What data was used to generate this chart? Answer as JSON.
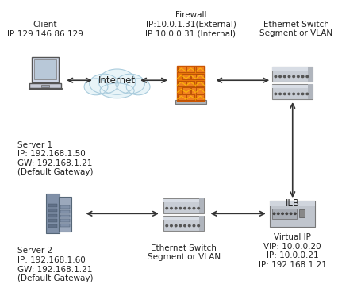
{
  "background_color": "#ffffff",
  "client_label": "Client\nIP:129.146.86.129",
  "firewall_label": "Firewall\nIP:10.0.1.31(External)\nIP:10.0.0.31 (Internal)",
  "eth_switch_top_label": "Ethernet Switch\nSegment or VLAN",
  "server1_label": "Server 1\nIP: 192.168.1.50\nGW: 192.168.1.21\n(Default Gateway)",
  "server2_label": "Server 2\nIP: 192.168.1.60\nGW: 192.168.1.21\n(Default Gateway)",
  "eth_switch_bot_label": "Ethernet Switch\nSegment or VLAN",
  "ilb_label": "ILB",
  "ilb_detail_label": "Virtual IP\nVIP: 10.0.0.20\nIP: 10.0.0.21\nIP: 192.168.1.21",
  "internet_label": "Internet",
  "font_size_small": 7.5,
  "font_size_medium": 8.5,
  "arrow_color": "#333333",
  "laptop_colors": {
    "frame": "#d0d8e8",
    "screen": "#b8c8d8",
    "base": "#c8ccd8",
    "pad": "#a0a8b8",
    "foot": "#aab0c0"
  },
  "cloud_colors": {
    "fill": "#e8f4f8",
    "edge": "#aaccdd"
  },
  "firewall_colors": {
    "plat": "#b0b4b8",
    "wall_bg": "#e8760a",
    "brick": "#f08020",
    "brick_edge": "#aa4400",
    "fire": "#ffcc00"
  },
  "switch_colors": {
    "main": "#c8cdd5",
    "top": "#d8dde5",
    "side": "#b0b5bd",
    "port": "#555555"
  },
  "server_colors": [
    "#8090a8",
    "#9ba8bc"
  ],
  "server_bay_colors": [
    "#607088",
    "#8090a8"
  ],
  "ilb_colors": {
    "main": "#c0c5cd",
    "panel": "#a8adb5",
    "btn": "#888888",
    "top": "#d0d5dd"
  }
}
